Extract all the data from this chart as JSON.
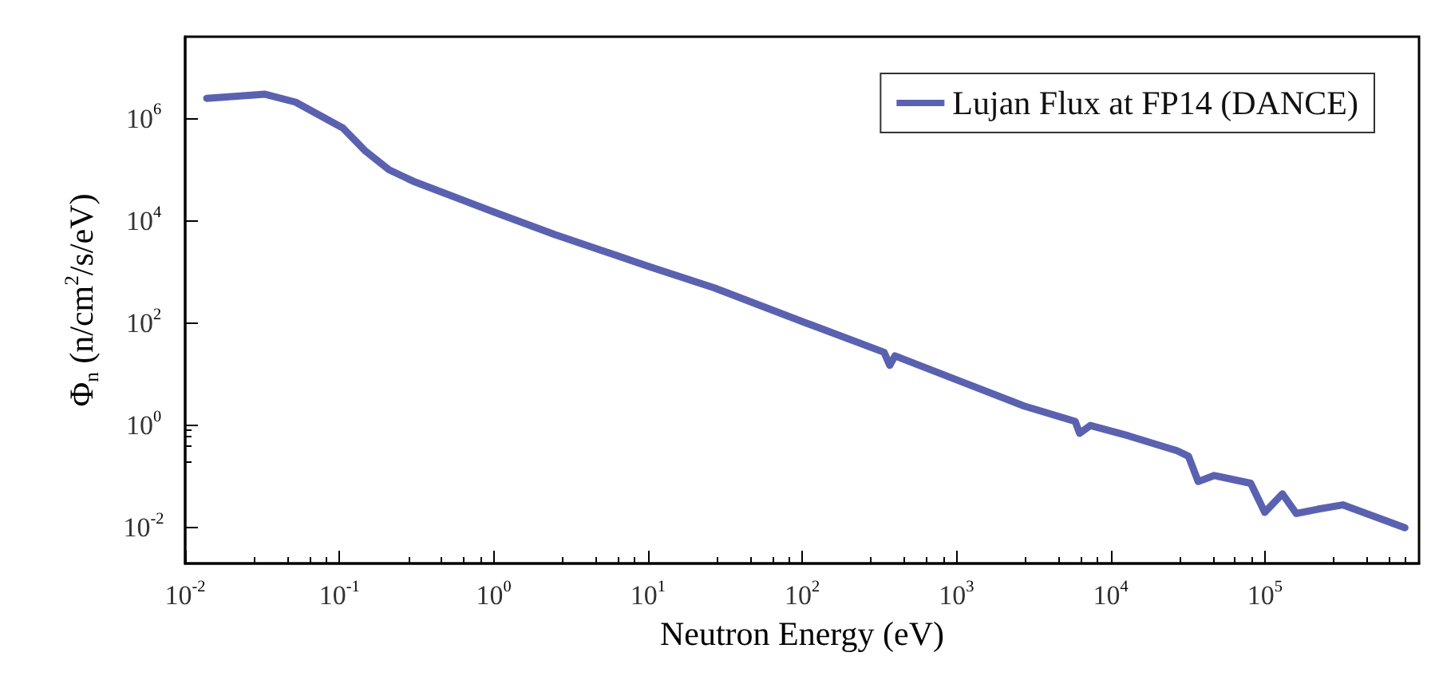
{
  "chart_data": {
    "type": "line",
    "xlabel": "Neutron Energy (eV)",
    "ylabel": "Φ$_{n}$ (n/cm$^{2}$/s/eV)",
    "log": "xy",
    "xlim": [
      0.01,
      1000000
    ],
    "ylim": [
      0.002,
      40000000
    ],
    "xticks": [
      {
        "value": 0.01,
        "label": "10$^{-2}$"
      },
      {
        "value": 0.1,
        "label": "10$^{-1}$"
      },
      {
        "value": 1,
        "label": "10$^{0}$"
      },
      {
        "value": 10,
        "label": "10$^{1}$"
      },
      {
        "value": 100,
        "label": "10$^{2}$"
      },
      {
        "value": 1000,
        "label": "10$^{3}$"
      },
      {
        "value": 10000,
        "label": "10$^{4}$"
      },
      {
        "value": 100000,
        "label": "10$^{5}$"
      }
    ],
    "yticks": [
      {
        "value": 0.01,
        "label": "10$^{-2}$"
      },
      {
        "value": 1,
        "label": "10$^{0}$"
      },
      {
        "value": 100,
        "label": "10$^{2}$"
      },
      {
        "value": 10000,
        "label": "10$^{4}$"
      },
      {
        "value": 1000000,
        "label": "10$^{6}$"
      }
    ],
    "legend": "top right",
    "grid": false,
    "marker": "none",
    "line_style": "solid",
    "series": [
      {
        "name": "Lujan Flux at FP14 (DANCE)",
        "color": "#5a62b0",
        "x": [
          0.0138,
          0.033,
          0.052,
          0.105,
          0.148,
          0.21,
          0.3,
          1,
          2.5,
          10,
          27,
          107,
          340,
          370,
          400,
          1100,
          2750,
          5900,
          6300,
          7400,
          13000,
          27000,
          32000,
          37000,
          47000,
          81000,
          100000,
          130000,
          160000,
          220000,
          320000,
          810000
        ],
        "values": [
          2500000,
          3000000,
          2100000,
          660000,
          230000,
          100000,
          60000,
          15000,
          5400,
          1300,
          490,
          100,
          27,
          15,
          23,
          7,
          2.4,
          1.2,
          0.7,
          1,
          0.63,
          0.32,
          0.25,
          0.08,
          0.105,
          0.074,
          0.02,
          0.046,
          0.019,
          0.023,
          0.028,
          0.01
        ]
      }
    ]
  }
}
